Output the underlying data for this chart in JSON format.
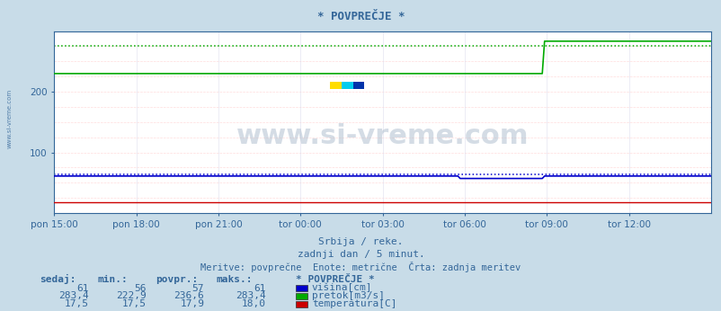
{
  "title": "* POVPREČJE *",
  "bg_color": "#c8dce8",
  "plot_bg_color": "#ffffff",
  "grid_color_h": "#ffcccc",
  "grid_color_v": "#ddddee",
  "text_color": "#336699",
  "subtitle1": "Srbija / reke.",
  "subtitle2": "zadnji dan / 5 minut.",
  "subtitle3": "Meritve: povprečne  Enote: metrične  Črta: zadnja meritev",
  "xaxis_labels": [
    "pon 15:00",
    "pon 18:00",
    "pon 21:00",
    "tor 00:00",
    "tor 03:00",
    "tor 06:00",
    "tor 09:00",
    "tor 12:00"
  ],
  "xaxis_ticks": [
    0,
    36,
    72,
    108,
    144,
    180,
    216,
    252
  ],
  "total_points": 289,
  "ylim": [
    0,
    300
  ],
  "blue_flat": 61,
  "blue_dip": 57,
  "blue_dip_start": 178,
  "blue_dip_end": 215,
  "blue_dotted": 64,
  "green_low": 230,
  "green_high": 283.4,
  "green_jump": 215,
  "green_dotted": 275,
  "red_val": 17.5,
  "blue_color": "#0000cc",
  "green_color": "#00aa00",
  "red_color": "#cc0000",
  "table_headers": [
    "sedaj:",
    "min.:",
    "povpr.:",
    "maks.:"
  ],
  "row1": [
    "61",
    "56",
    "57",
    "61"
  ],
  "row2": [
    "283,4",
    "222,9",
    "236,6",
    "283,4"
  ],
  "row3": [
    "17,5",
    "17,5",
    "17,9",
    "18,0"
  ],
  "legend_labels": [
    "višina[cm]",
    "pretok[m3/s]",
    "temperatura[C]"
  ],
  "legend_colors": [
    "#0000cc",
    "#00aa00",
    "#cc0000"
  ],
  "legend_title": "* POVPREČJE *",
  "watermark": "www.si-vreme.com",
  "left_text": "www.si-vreme.com"
}
